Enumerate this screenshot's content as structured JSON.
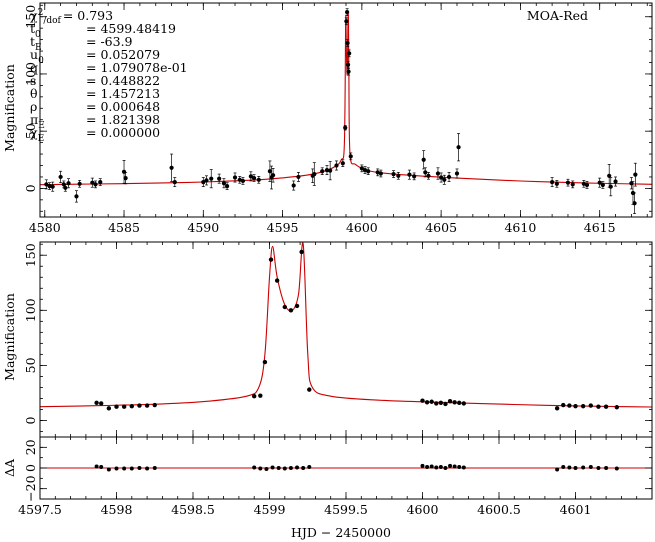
{
  "chart_data": [
    {
      "type": "scatter",
      "panel": "top",
      "legend_label": "MOA-Red",
      "legend_position": "top-right",
      "xlabel": "",
      "ylabel": "Magnification",
      "xlim": [
        4579.7,
        4618.3
      ],
      "ylim": [
        -25,
        162
      ],
      "xticks": [
        4580,
        4585,
        4590,
        4595,
        4600,
        4605,
        4610,
        4615
      ],
      "xtick_labels": [
        "4580",
        "4585",
        "4590",
        "4595",
        "4600",
        "4605",
        "4610",
        "4615"
      ],
      "yticks": [
        0,
        50,
        100,
        150
      ],
      "ytick_labels": [
        "0",
        "50",
        "100",
        "150"
      ],
      "parameters": [
        {
          "name": "χ²/dof",
          "value": "= 0.793"
        },
        {
          "name": "t₀",
          "value": "= 4599.48419"
        },
        {
          "name": "t_E",
          "value": "= -63.9"
        },
        {
          "name": "u₀",
          "value": "= 0.052079"
        },
        {
          "name": "q",
          "value": "= 1.079078e-01"
        },
        {
          "name": "s",
          "value": "= 0.448822"
        },
        {
          "name": "θ",
          "value": "= 1.457213"
        },
        {
          "name": "ρ",
          "value": "= 0.000648"
        },
        {
          "name": "π_E",
          "value": "= 1.821398"
        },
        {
          "name": "χ_E",
          "value": "= 0.000000"
        }
      ],
      "points": [
        {
          "x": 4580.1,
          "y": 3.5,
          "err": 4
        },
        {
          "x": 4580.3,
          "y": 2.0,
          "err": 3
        },
        {
          "x": 4580.5,
          "y": 1.5,
          "err": 4
        },
        {
          "x": 4581.0,
          "y": 10.0,
          "err": 5
        },
        {
          "x": 4581.2,
          "y": 3.5,
          "err": 3
        },
        {
          "x": 4581.3,
          "y": 0.5,
          "err": 3
        },
        {
          "x": 4581.5,
          "y": 4.5,
          "err": 4
        },
        {
          "x": 4582.0,
          "y": -7.0,
          "err": 5
        },
        {
          "x": 4582.2,
          "y": 4.0,
          "err": 3
        },
        {
          "x": 4583.0,
          "y": 5.0,
          "err": 4
        },
        {
          "x": 4583.2,
          "y": 3.5,
          "err": 3
        },
        {
          "x": 4583.5,
          "y": 5.5,
          "err": 3
        },
        {
          "x": 4585.0,
          "y": 14.5,
          "err": 10
        },
        {
          "x": 4585.1,
          "y": 9.0,
          "err": 5
        },
        {
          "x": 4588.0,
          "y": 18.0,
          "err": 12
        },
        {
          "x": 4588.2,
          "y": 5.5,
          "err": 4
        },
        {
          "x": 4590.0,
          "y": 5.5,
          "err": 4
        },
        {
          "x": 4590.2,
          "y": 7.0,
          "err": 4
        },
        {
          "x": 4590.5,
          "y": 8.5,
          "err": 8
        },
        {
          "x": 4591.0,
          "y": 8.5,
          "err": 4
        },
        {
          "x": 4591.3,
          "y": 4.5,
          "err": 4
        },
        {
          "x": 4591.5,
          "y": 2.0,
          "err": 3
        },
        {
          "x": 4592.0,
          "y": 9.5,
          "err": 4
        },
        {
          "x": 4592.3,
          "y": 7.5,
          "err": 3
        },
        {
          "x": 4592.5,
          "y": 6.5,
          "err": 3
        },
        {
          "x": 4593.0,
          "y": 10.5,
          "err": 4
        },
        {
          "x": 4593.2,
          "y": 9.0,
          "err": 3
        },
        {
          "x": 4593.5,
          "y": 7.5,
          "err": 3
        },
        {
          "x": 4594.2,
          "y": 15.0,
          "err": 9
        },
        {
          "x": 4594.3,
          "y": 9.5,
          "err": 10
        },
        {
          "x": 4594.4,
          "y": 11.5,
          "err": 6
        },
        {
          "x": 4595.7,
          "y": 2.5,
          "err": 4
        },
        {
          "x": 4596.0,
          "y": 10.0,
          "err": 4
        },
        {
          "x": 4596.9,
          "y": 11.0,
          "err": 6
        },
        {
          "x": 4597.0,
          "y": 12.5,
          "err": 10
        },
        {
          "x": 4597.5,
          "y": 15.0,
          "err": 3
        },
        {
          "x": 4597.8,
          "y": 16.0,
          "err": 4
        },
        {
          "x": 4598.0,
          "y": 15.5,
          "err": 8
        },
        {
          "x": 4598.4,
          "y": 20.0,
          "err": 4
        },
        {
          "x": 4598.8,
          "y": 22.0,
          "err": 3
        },
        {
          "x": 4598.95,
          "y": 53.0,
          "err": 2
        },
        {
          "x": 4599.02,
          "y": 146.0,
          "err": 3
        },
        {
          "x": 4599.07,
          "y": 154.0,
          "err": 3
        },
        {
          "x": 4599.1,
          "y": 127.0,
          "err": 3
        },
        {
          "x": 4599.13,
          "y": 108.0,
          "err": 3
        },
        {
          "x": 4599.16,
          "y": 102.0,
          "err": 3
        },
        {
          "x": 4599.2,
          "y": 118.0,
          "err": 3
        },
        {
          "x": 4599.3,
          "y": 28.0,
          "err": 3
        },
        {
          "x": 4600.0,
          "y": 17.5,
          "err": 3
        },
        {
          "x": 4600.2,
          "y": 16.0,
          "err": 3
        },
        {
          "x": 4600.4,
          "y": 15.0,
          "err": 3
        },
        {
          "x": 4601.0,
          "y": 14.0,
          "err": 3
        },
        {
          "x": 4601.2,
          "y": 13.0,
          "err": 3
        },
        {
          "x": 4602.0,
          "y": 12.5,
          "err": 3
        },
        {
          "x": 4602.3,
          "y": 11.0,
          "err": 3
        },
        {
          "x": 4603.0,
          "y": 12.0,
          "err": 4
        },
        {
          "x": 4603.3,
          "y": 10.5,
          "err": 3
        },
        {
          "x": 4603.9,
          "y": 25.0,
          "err": 8
        },
        {
          "x": 4604.0,
          "y": 14.0,
          "err": 4
        },
        {
          "x": 4604.2,
          "y": 11.0,
          "err": 3
        },
        {
          "x": 4604.8,
          "y": 13.0,
          "err": 5
        },
        {
          "x": 4605.0,
          "y": 9.5,
          "err": 4
        },
        {
          "x": 4605.2,
          "y": 7.5,
          "err": 4
        },
        {
          "x": 4605.5,
          "y": 10.0,
          "err": 4
        },
        {
          "x": 4606.1,
          "y": 36.0,
          "err": 12
        },
        {
          "x": 4606.0,
          "y": 13.0,
          "err": 4
        },
        {
          "x": 4612.0,
          "y": 5.5,
          "err": 4
        },
        {
          "x": 4612.3,
          "y": 4.0,
          "err": 3
        },
        {
          "x": 4613.0,
          "y": 5.0,
          "err": 3
        },
        {
          "x": 4613.3,
          "y": 3.5,
          "err": 3
        },
        {
          "x": 4614.0,
          "y": 4.0,
          "err": 3
        },
        {
          "x": 4614.2,
          "y": 3.0,
          "err": 3
        },
        {
          "x": 4615.0,
          "y": 5.0,
          "err": 4
        },
        {
          "x": 4615.2,
          "y": 3.0,
          "err": 3
        },
        {
          "x": 4615.6,
          "y": 11.0,
          "err": 10
        },
        {
          "x": 4615.7,
          "y": 1.5,
          "err": 8
        },
        {
          "x": 4616.0,
          "y": 6.0,
          "err": 4
        },
        {
          "x": 4617.0,
          "y": 4.5,
          "err": 5
        },
        {
          "x": 4617.1,
          "y": -4.0,
          "err": 10
        },
        {
          "x": 4617.2,
          "y": -13.0,
          "err": 9
        },
        {
          "x": 4617.25,
          "y": 12.0,
          "err": 10
        }
      ]
    },
    {
      "type": "scatter",
      "panel": "zoom",
      "xlabel": "",
      "ylabel": "Magnification",
      "xlim": [
        4597.5,
        4601.5
      ],
      "ylim": [
        -15,
        162
      ],
      "xticks": [
        4597.5,
        4598,
        4598.5,
        4599,
        4599.5,
        4600,
        4600.5,
        4601
      ],
      "yticks": [
        0,
        50,
        100,
        150
      ],
      "ytick_labels": [
        "0",
        "50",
        "100",
        "150"
      ],
      "points": [
        {
          "x": 4597.87,
          "y": 16.0
        },
        {
          "x": 4597.9,
          "y": 15.5
        },
        {
          "x": 4597.95,
          "y": 11.0
        },
        {
          "x": 4598.0,
          "y": 12.5
        },
        {
          "x": 4598.05,
          "y": 12.5
        },
        {
          "x": 4598.1,
          "y": 13.0
        },
        {
          "x": 4598.15,
          "y": 13.5
        },
        {
          "x": 4598.2,
          "y": 13.5
        },
        {
          "x": 4598.25,
          "y": 14.0
        },
        {
          "x": 4598.9,
          "y": 22.0
        },
        {
          "x": 4598.94,
          "y": 22.5
        },
        {
          "x": 4598.97,
          "y": 53.0
        },
        {
          "x": 4599.01,
          "y": 146.0
        },
        {
          "x": 4599.05,
          "y": 127.0
        },
        {
          "x": 4599.1,
          "y": 103.0
        },
        {
          "x": 4599.14,
          "y": 100.0
        },
        {
          "x": 4599.18,
          "y": 104.0
        },
        {
          "x": 4599.21,
          "y": 153.0
        },
        {
          "x": 4599.26,
          "y": 28.0
        },
        {
          "x": 4600.0,
          "y": 18.0
        },
        {
          "x": 4600.03,
          "y": 16.5
        },
        {
          "x": 4600.06,
          "y": 17.0
        },
        {
          "x": 4600.09,
          "y": 15.5
        },
        {
          "x": 4600.12,
          "y": 16.0
        },
        {
          "x": 4600.15,
          "y": 15.0
        },
        {
          "x": 4600.18,
          "y": 17.5
        },
        {
          "x": 4600.21,
          "y": 16.5
        },
        {
          "x": 4600.24,
          "y": 16.0
        },
        {
          "x": 4600.27,
          "y": 15.5
        },
        {
          "x": 4600.88,
          "y": 11.0
        },
        {
          "x": 4600.92,
          "y": 14.0
        },
        {
          "x": 4600.96,
          "y": 13.5
        },
        {
          "x": 4601.0,
          "y": 13.0
        },
        {
          "x": 4601.05,
          "y": 13.0
        },
        {
          "x": 4601.1,
          "y": 13.5
        },
        {
          "x": 4601.15,
          "y": 12.5
        },
        {
          "x": 4601.2,
          "y": 12.5
        },
        {
          "x": 4601.27,
          "y": 12.0
        }
      ]
    },
    {
      "type": "scatter",
      "panel": "residuals",
      "xlabel": "HJD − 2450000",
      "ylabel": "ΔA",
      "xlim": [
        4597.5,
        4601.5
      ],
      "ylim": [
        -30,
        30
      ],
      "xticks": [
        4597.5,
        4598,
        4598.5,
        4599,
        4599.5,
        4600,
        4600.5,
        4601
      ],
      "xtick_labels": [
        "4597.5",
        "4598",
        "4598.5",
        "4599",
        "4599.5",
        "4600",
        "4600.5",
        "4601"
      ],
      "yticks": [
        -20,
        0,
        20
      ],
      "ytick_labels": [
        "−20",
        "0",
        "20"
      ],
      "points": [
        {
          "x": 4597.87,
          "y": 1.5
        },
        {
          "x": 4597.9,
          "y": 1.0
        },
        {
          "x": 4597.95,
          "y": -1.5
        },
        {
          "x": 4598.0,
          "y": -0.5
        },
        {
          "x": 4598.05,
          "y": -0.5
        },
        {
          "x": 4598.1,
          "y": -0.5
        },
        {
          "x": 4598.15,
          "y": 0.0
        },
        {
          "x": 4598.2,
          "y": -0.5
        },
        {
          "x": 4598.25,
          "y": 0.0
        },
        {
          "x": 4598.9,
          "y": 0.5
        },
        {
          "x": 4598.94,
          "y": -0.5
        },
        {
          "x": 4598.98,
          "y": -1.0
        },
        {
          "x": 4599.02,
          "y": 0.5
        },
        {
          "x": 4599.06,
          "y": 0.0
        },
        {
          "x": 4599.1,
          "y": -0.5
        },
        {
          "x": 4599.14,
          "y": 0.0
        },
        {
          "x": 4599.18,
          "y": 0.5
        },
        {
          "x": 4599.22,
          "y": 0.0
        },
        {
          "x": 4599.26,
          "y": 1.0
        },
        {
          "x": 4600.0,
          "y": 2.0
        },
        {
          "x": 4600.03,
          "y": 1.0
        },
        {
          "x": 4600.06,
          "y": 1.5
        },
        {
          "x": 4600.09,
          "y": 0.5
        },
        {
          "x": 4600.12,
          "y": 1.0
        },
        {
          "x": 4600.15,
          "y": 0.0
        },
        {
          "x": 4600.18,
          "y": 2.0
        },
        {
          "x": 4600.21,
          "y": 1.5
        },
        {
          "x": 4600.24,
          "y": 1.0
        },
        {
          "x": 4600.27,
          "y": 0.5
        },
        {
          "x": 4600.88,
          "y": -1.5
        },
        {
          "x": 4600.92,
          "y": 1.0
        },
        {
          "x": 4600.96,
          "y": 0.5
        },
        {
          "x": 4601.0,
          "y": 0.0
        },
        {
          "x": 4601.05,
          "y": 0.5
        },
        {
          "x": 4601.1,
          "y": 1.0
        },
        {
          "x": 4601.15,
          "y": 0.0
        },
        {
          "x": 4601.2,
          "y": 0.0
        },
        {
          "x": 4601.27,
          "y": -0.5
        }
      ]
    }
  ],
  "colors": {
    "model": "#cc0000",
    "points": "#000000"
  }
}
